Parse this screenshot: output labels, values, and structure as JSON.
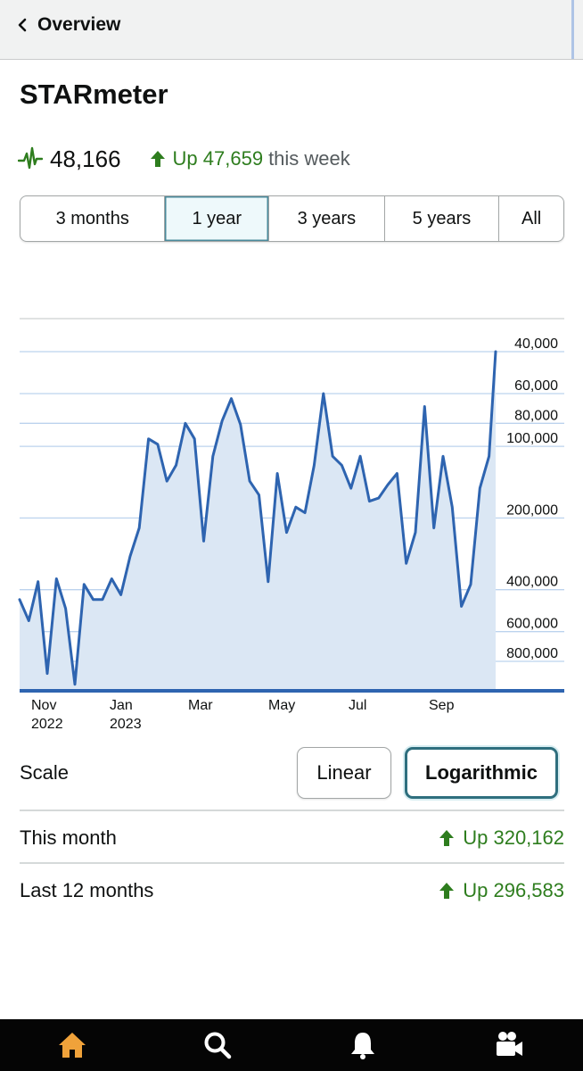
{
  "header": {
    "back_label": "Overview"
  },
  "page": {
    "title": "STARmeter",
    "meter_value": "48,166",
    "change_text": "Up 47,659",
    "change_suffix": "this week"
  },
  "range_tabs": [
    {
      "label": "3 months",
      "active": false
    },
    {
      "label": "1 year",
      "active": true
    },
    {
      "label": "3 years",
      "active": false
    },
    {
      "label": "5 years",
      "active": false
    },
    {
      "label": "All",
      "active": false
    }
  ],
  "scale": {
    "label": "Scale",
    "options": [
      {
        "label": "Linear",
        "selected": false
      },
      {
        "label": "Logarithmic",
        "selected": true
      }
    ]
  },
  "stats": [
    {
      "label": "This month",
      "value": "Up 320,162"
    },
    {
      "label": "Last 12 months",
      "value": "Up 296,583"
    }
  ],
  "bottom_nav": [
    {
      "icon": "home-icon",
      "active": true
    },
    {
      "icon": "search-icon",
      "active": false
    },
    {
      "icon": "bell-icon",
      "active": false
    },
    {
      "icon": "video-camera-icon",
      "active": false
    }
  ],
  "colors": {
    "accent_green": "#2e7d1e",
    "line_blue": "#2e64b0",
    "fill_blue": "#dbe7f4",
    "active_teal": "#2f6f7e",
    "home_orange": "#f0a23a"
  },
  "chart_data": {
    "type": "area",
    "y_scale": "log",
    "y_inverted": true,
    "y_ticks": [
      40000,
      60000,
      80000,
      100000,
      200000,
      400000,
      600000,
      800000
    ],
    "y_tick_labels": [
      "40,000",
      "60,000",
      "80,000",
      "100,000",
      "200,000",
      "400,000",
      "600,000",
      "800,000"
    ],
    "x_tick_labels": [
      {
        "month": "Nov",
        "year": "2022"
      },
      {
        "month": "Jan",
        "year": "2023"
      },
      {
        "month": "Mar",
        "year": ""
      },
      {
        "month": "May",
        "year": ""
      },
      {
        "month": "Jul",
        "year": ""
      },
      {
        "month": "Sep",
        "year": ""
      }
    ],
    "x_range": [
      "2022-10-18",
      "2023-10-15"
    ],
    "series": [
      {
        "dates": [
          "2022-10-18",
          "2022-10-25",
          "2022-11-01",
          "2022-11-08",
          "2022-11-15",
          "2022-11-22",
          "2022-11-29",
          "2022-12-06",
          "2022-12-13",
          "2022-12-20",
          "2022-12-27",
          "2023-01-03",
          "2023-01-10",
          "2023-01-17",
          "2023-01-24",
          "2023-01-31",
          "2023-02-07",
          "2023-02-14",
          "2023-02-21",
          "2023-02-28",
          "2023-03-07",
          "2023-03-14",
          "2023-03-21",
          "2023-03-28",
          "2023-04-04",
          "2023-04-11",
          "2023-04-18",
          "2023-04-25",
          "2023-05-02",
          "2023-05-09",
          "2023-05-16",
          "2023-05-23",
          "2023-05-30",
          "2023-06-06",
          "2023-06-13",
          "2023-06-20",
          "2023-06-27",
          "2023-07-04",
          "2023-07-11",
          "2023-07-18",
          "2023-07-25",
          "2023-08-01",
          "2023-08-08",
          "2023-08-15",
          "2023-08-22",
          "2023-08-29",
          "2023-09-05",
          "2023-09-12",
          "2023-09-19",
          "2023-09-26",
          "2023-10-03",
          "2023-10-10",
          "2023-10-15"
        ],
        "values": [
          440000,
          540000,
          370000,
          900000,
          360000,
          480000,
          1000000,
          380000,
          440000,
          440000,
          360000,
          420000,
          290000,
          220000,
          93000,
          98000,
          140000,
          120000,
          80000,
          93000,
          250000,
          110000,
          78000,
          63000,
          81000,
          140000,
          160000,
          370000,
          130000,
          230000,
          180000,
          190000,
          120000,
          60000,
          110000,
          120000,
          150000,
          110000,
          170000,
          165000,
          145000,
          130000,
          310000,
          230000,
          68000,
          220000,
          110000,
          180000,
          470000,
          380000,
          150000,
          110000,
          40000
        ]
      }
    ]
  }
}
